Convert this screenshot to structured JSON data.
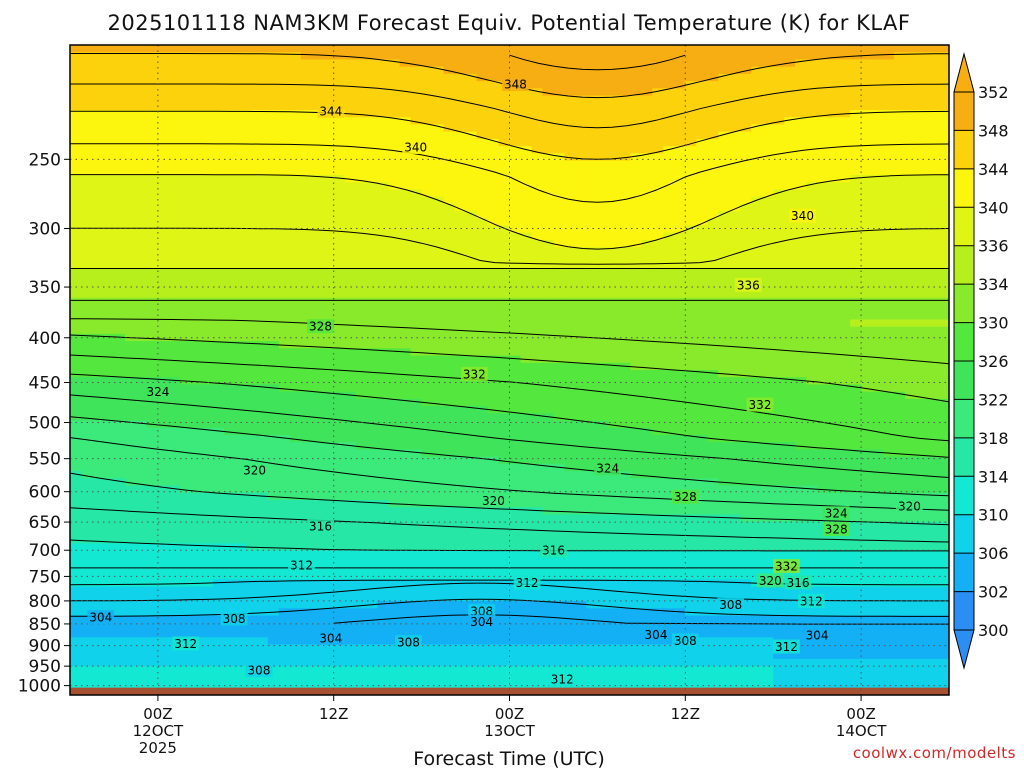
{
  "chart_data": {
    "type": "heatmap",
    "title": "2025101118 NAM3KM Forecast Equiv. Potential Temperature (K) for KLAF",
    "xlabel": "Forecast Time (UTC)",
    "ylabel": "",
    "credit": "coolwx.com/modelts",
    "x_ticks": [
      {
        "hour": 6,
        "lines": [
          "00Z",
          "12OCT",
          "2025"
        ]
      },
      {
        "hour": 18,
        "lines": [
          "12Z"
        ]
      },
      {
        "hour": 30,
        "lines": [
          "00Z",
          "13OCT"
        ]
      },
      {
        "hour": 42,
        "lines": [
          "12Z"
        ]
      },
      {
        "hour": 54,
        "lines": [
          "00Z",
          "14OCT"
        ]
      }
    ],
    "xlim": [
      0,
      60
    ],
    "y_axis": "pressure (hPa), log scale",
    "ylim": [
      1025,
      185
    ],
    "y_ticks": [
      250,
      300,
      350,
      400,
      450,
      500,
      550,
      600,
      650,
      700,
      750,
      800,
      850,
      900,
      950,
      1000
    ],
    "colorbar": {
      "ticks": [
        300,
        302,
        306,
        310,
        314,
        318,
        322,
        326,
        330,
        334,
        336,
        340,
        344,
        348,
        352
      ],
      "colors": [
        "#2a8ef5",
        "#14b0f5",
        "#10d2ea",
        "#13e8d2",
        "#26e7a6",
        "#3bea7a",
        "#3fe45a",
        "#54e83e",
        "#88ea2a",
        "#b6ef1c",
        "#dff516",
        "#fcf50e",
        "#fcd20c",
        "#f6ae12"
      ],
      "extend": "both"
    },
    "contour_labels": [
      {
        "value": "348",
        "hour": 30.4,
        "p": 205
      },
      {
        "value": "344",
        "hour": 17.8,
        "p": 220
      },
      {
        "value": "340",
        "hour": 23.6,
        "p": 242
      },
      {
        "value": "340",
        "hour": 50.0,
        "p": 290
      },
      {
        "value": "336",
        "hour": 46.3,
        "p": 348
      },
      {
        "value": "328",
        "hour": 17.1,
        "p": 388
      },
      {
        "value": "332",
        "hour": 27.6,
        "p": 440
      },
      {
        "value": "332",
        "hour": 47.1,
        "p": 477
      },
      {
        "value": "324",
        "hour": 6.0,
        "p": 461
      },
      {
        "value": "324",
        "hour": 36.7,
        "p": 564
      },
      {
        "value": "320",
        "hour": 12.6,
        "p": 567
      },
      {
        "value": "320",
        "hour": 28.9,
        "p": 614
      },
      {
        "value": "320",
        "hour": 57.3,
        "p": 623
      },
      {
        "value": "328",
        "hour": 42.0,
        "p": 608
      },
      {
        "value": "324",
        "hour": 52.3,
        "p": 635
      },
      {
        "value": "328",
        "hour": 52.3,
        "p": 662
      },
      {
        "value": "316",
        "hour": 17.1,
        "p": 657
      },
      {
        "value": "316",
        "hour": 33.0,
        "p": 700
      },
      {
        "value": "312",
        "hour": 15.8,
        "p": 728
      },
      {
        "value": "312",
        "hour": 31.2,
        "p": 762
      },
      {
        "value": "332",
        "hour": 48.9,
        "p": 730
      },
      {
        "value": "320",
        "hour": 47.8,
        "p": 758
      },
      {
        "value": "316",
        "hour": 49.7,
        "p": 762
      },
      {
        "value": "312",
        "hour": 50.6,
        "p": 800
      },
      {
        "value": "308",
        "hour": 45.1,
        "p": 808
      },
      {
        "value": "308",
        "hour": 28.1,
        "p": 822
      },
      {
        "value": "304",
        "hour": 28.1,
        "p": 845
      },
      {
        "value": "304",
        "hour": 2.1,
        "p": 835
      },
      {
        "value": "308",
        "hour": 11.2,
        "p": 838
      },
      {
        "value": "304",
        "hour": 17.8,
        "p": 882
      },
      {
        "value": "308",
        "hour": 23.1,
        "p": 892
      },
      {
        "value": "304",
        "hour": 40.0,
        "p": 874
      },
      {
        "value": "308",
        "hour": 42.0,
        "p": 888
      },
      {
        "value": "304",
        "hour": 51.0,
        "p": 875
      },
      {
        "value": "312",
        "hour": 48.9,
        "p": 902
      },
      {
        "value": "312",
        "hour": 7.9,
        "p": 895
      },
      {
        "value": "308",
        "hour": 12.9,
        "p": 960
      },
      {
        "value": "312",
        "hour": 33.6,
        "p": 983
      }
    ],
    "grid": true,
    "ground_fill": "below 1000 hPa",
    "colors": {
      "ground": "#a65232",
      "contour": "#000000",
      "grid": "#555555",
      "credit": "#cc2a2a"
    }
  }
}
